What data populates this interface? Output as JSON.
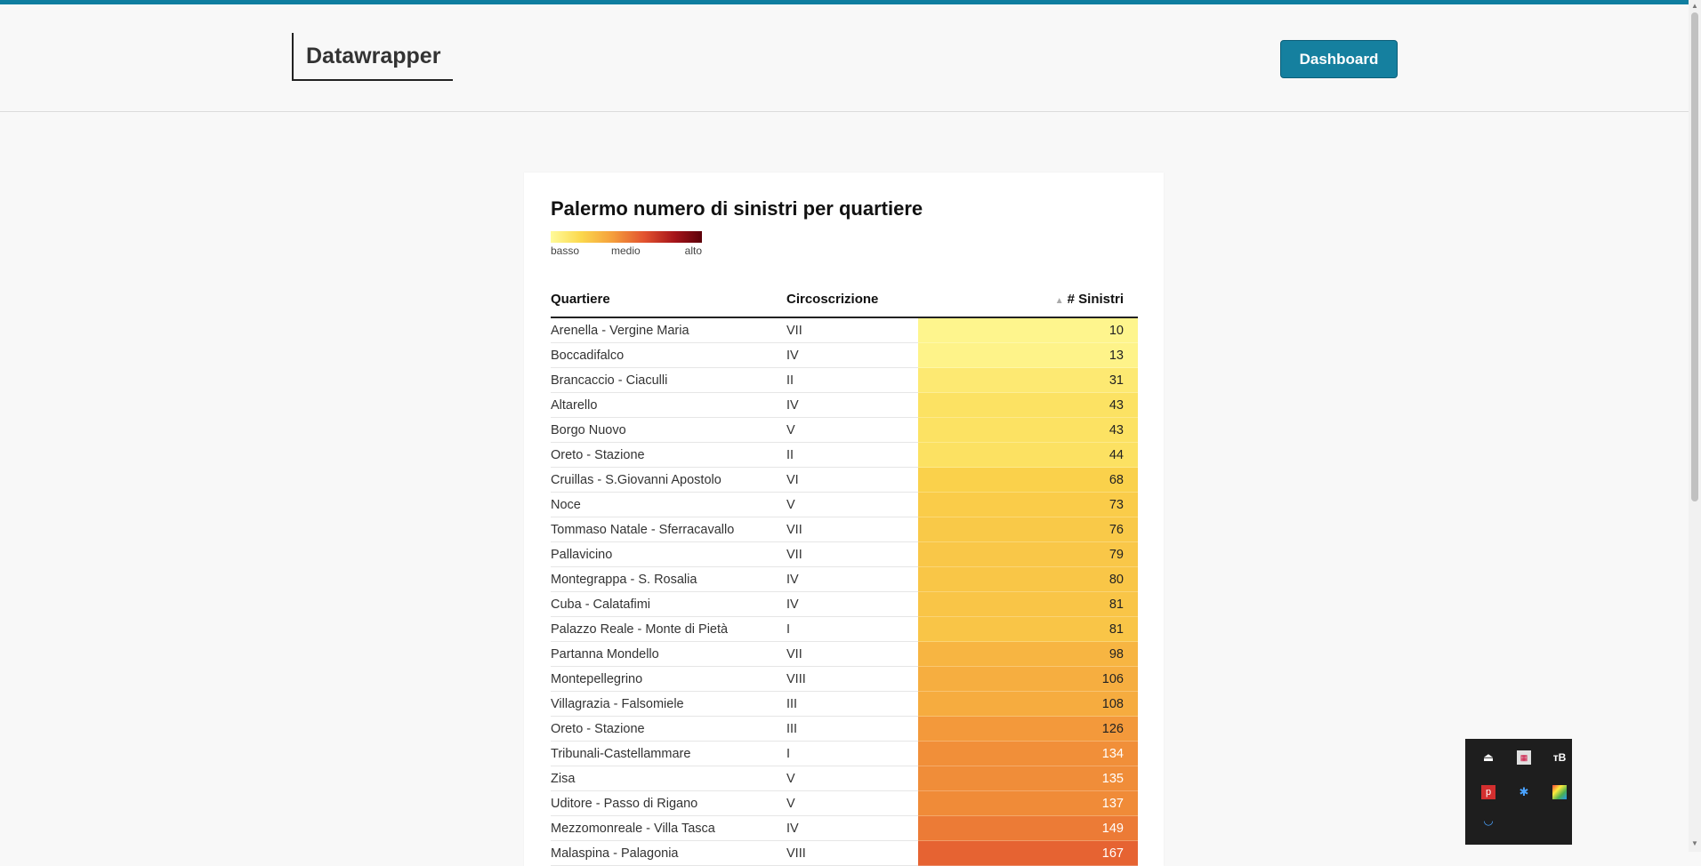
{
  "header": {
    "logo": "Datawrapper",
    "dashboard_label": "Dashboard"
  },
  "colors": {
    "accent": "#15809f",
    "topbar": "#0f7ea0"
  },
  "chart": {
    "title": "Palermo numero di sinistri per quartiere",
    "legend": {
      "low": "basso",
      "mid": "medio",
      "high": "alto"
    },
    "columns": {
      "quartiere": "Quartiere",
      "circoscrizione": "Circoscrizione",
      "sinistri": "# Sinistri"
    }
  },
  "chart_data": {
    "type": "table",
    "title": "Palermo numero di sinistri per quartiere",
    "columns": [
      "Quartiere",
      "Circoscrizione",
      "# Sinistri"
    ],
    "sort": {
      "column": "# Sinistri",
      "order": "ascending"
    },
    "color_scale": {
      "min_label": "basso",
      "mid_label": "medio",
      "max_label": "alto",
      "colors": [
        "#fffb9a",
        "#fbd84d",
        "#f5a13c",
        "#e2522f",
        "#a6141a",
        "#5c0009"
      ]
    },
    "rows": [
      {
        "quartiere": "Arenella - Vergine Maria",
        "circoscrizione": "VII",
        "sinistri": 10
      },
      {
        "quartiere": "Boccadifalco",
        "circoscrizione": "IV",
        "sinistri": 13
      },
      {
        "quartiere": "Brancaccio - Ciaculli",
        "circoscrizione": "II",
        "sinistri": 31
      },
      {
        "quartiere": "Altarello",
        "circoscrizione": "IV",
        "sinistri": 43
      },
      {
        "quartiere": "Borgo Nuovo",
        "circoscrizione": "V",
        "sinistri": 43
      },
      {
        "quartiere": "Oreto - Stazione",
        "circoscrizione": "II",
        "sinistri": 44
      },
      {
        "quartiere": "Cruillas - S.Giovanni Apostolo",
        "circoscrizione": "VI",
        "sinistri": 68
      },
      {
        "quartiere": "Noce",
        "circoscrizione": "V",
        "sinistri": 73
      },
      {
        "quartiere": "Tommaso Natale - Sferracavallo",
        "circoscrizione": "VII",
        "sinistri": 76
      },
      {
        "quartiere": "Pallavicino",
        "circoscrizione": "VII",
        "sinistri": 79
      },
      {
        "quartiere": "Montegrappa - S. Rosalia",
        "circoscrizione": "IV",
        "sinistri": 80
      },
      {
        "quartiere": "Cuba - Calatafimi",
        "circoscrizione": "IV",
        "sinistri": 81
      },
      {
        "quartiere": "Palazzo Reale - Monte di Pietà",
        "circoscrizione": "I",
        "sinistri": 81
      },
      {
        "quartiere": "Partanna Mondello",
        "circoscrizione": "VII",
        "sinistri": 98
      },
      {
        "quartiere": "Montepellegrino",
        "circoscrizione": "VIII",
        "sinistri": 106
      },
      {
        "quartiere": "Villagrazia - Falsomiele",
        "circoscrizione": "III",
        "sinistri": 108
      },
      {
        "quartiere": "Oreto - Stazione",
        "circoscrizione": "III",
        "sinistri": 126
      },
      {
        "quartiere": "Tribunali-Castellammare",
        "circoscrizione": "I",
        "sinistri": 134
      },
      {
        "quartiere": "Zisa",
        "circoscrizione": "V",
        "sinistri": 135
      },
      {
        "quartiere": "Uditore - Passo di Rigano",
        "circoscrizione": "V",
        "sinistri": 137
      },
      {
        "quartiere": "Mezzomonreale - Villa Tasca",
        "circoscrizione": "IV",
        "sinistri": 149
      },
      {
        "quartiere": "Malaspina - Palagonia",
        "circoscrizione": "VIII",
        "sinistri": 167
      }
    ]
  },
  "tray": {
    "icons": [
      "usb-icon",
      "app-icon",
      "tb-icon",
      "p-icon",
      "bluetooth-icon",
      "color-icon",
      "cup-icon"
    ]
  }
}
